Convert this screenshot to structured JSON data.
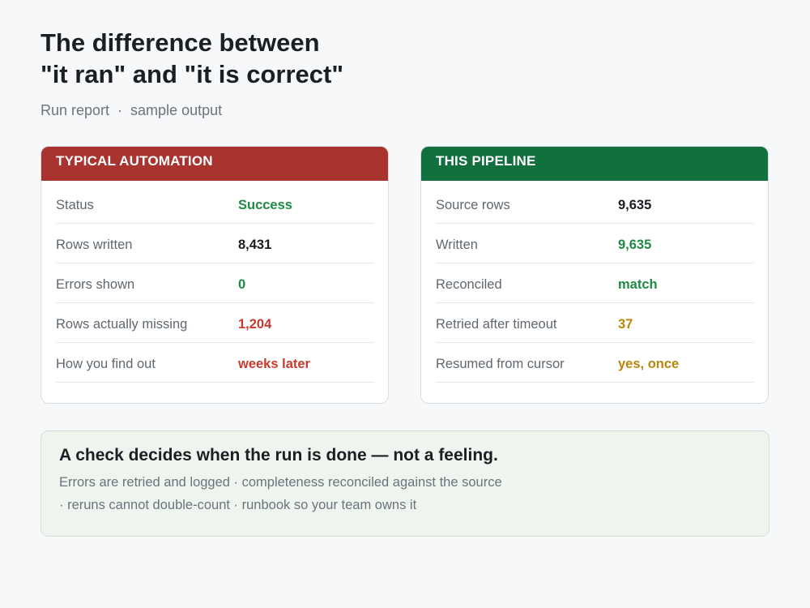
{
  "header": {
    "title_lines": [
      "The difference between",
      "\"it ran\" and \"it is correct\""
    ],
    "subtitle": "Run report  ·  sample output"
  },
  "cards": [
    {
      "title": "TYPICAL AUTOMATION",
      "color": "#a9342f",
      "rows": [
        {
          "label": "Status",
          "value": "Success",
          "color": "#1f8a45"
        },
        {
          "label": "Rows written",
          "value": "8,431",
          "color": "#1b1f24"
        },
        {
          "label": "Errors shown",
          "value": "0",
          "color": "#1f8a45"
        },
        {
          "label": "Rows actually missing",
          "value": "1,204",
          "color": "#c9392f"
        },
        {
          "label": "How you find out",
          "value": "weeks later",
          "color": "#c9392f"
        }
      ]
    },
    {
      "title": "THIS PIPELINE",
      "color": "#12703e",
      "rows": [
        {
          "label": "Source rows",
          "value": "9,635",
          "color": "#1b1f24"
        },
        {
          "label": "Written",
          "value": "9,635",
          "color": "#1f8a45"
        },
        {
          "label": "Reconciled",
          "value": "match",
          "color": "#1f8a45"
        },
        {
          "label": "Retried after timeout",
          "value": "37",
          "color": "#b8860b"
        },
        {
          "label": "Resumed from cursor",
          "value": "yes, once",
          "color": "#b8860b"
        }
      ]
    }
  ],
  "callout": {
    "title": "A check decides when the run is done — not a feeling.",
    "lines": [
      "Errors are retried and logged · completeness reconciled against the source",
      "· reruns cannot double-count · runbook so your team owns it"
    ]
  }
}
